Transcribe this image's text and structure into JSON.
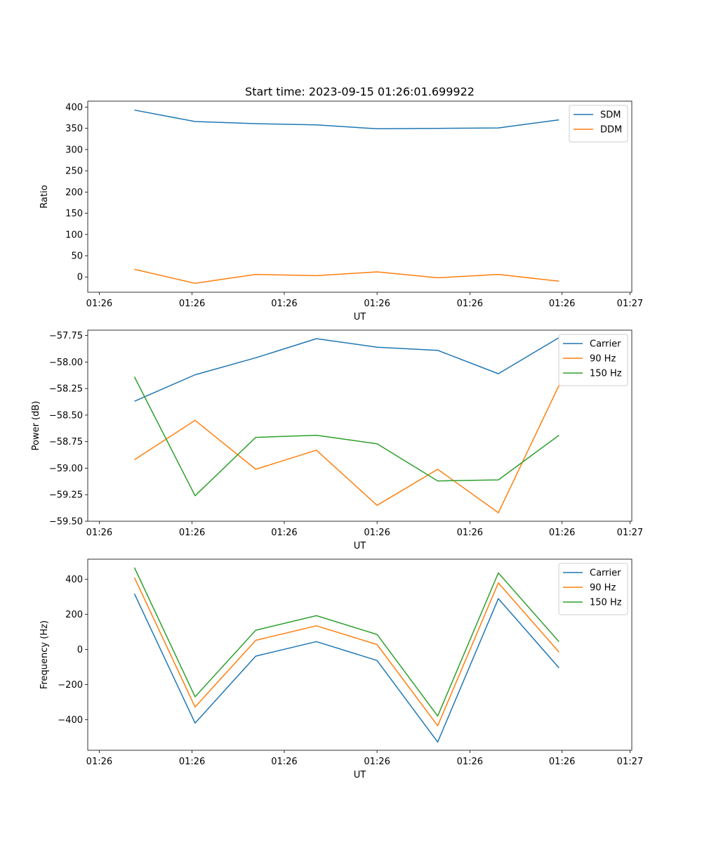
{
  "chart_data": [
    {
      "type": "line",
      "title": "Start time: 2023-09-15 01:26:01.699922",
      "xlabel": "UT",
      "ylabel": "Ratio",
      "x": [
        1,
        2,
        3,
        4,
        5,
        6,
        7,
        8
      ],
      "xlim": [
        0.23,
        9.2
      ],
      "xticks": [
        0.42,
        1.95,
        3.47,
        5.0,
        6.53,
        8.05,
        9.17
      ],
      "xticklabels": [
        "01:26",
        "01:26",
        "01:26",
        "01:26",
        "01:26",
        "01:26",
        "01:27"
      ],
      "ylim": [
        -36,
        414
      ],
      "yticks": [
        0,
        50,
        100,
        150,
        200,
        250,
        300,
        350,
        400
      ],
      "legend": "top-right",
      "series": [
        {
          "name": "SDM",
          "color": "#1f77b4",
          "values": [
            393,
            366,
            361,
            358,
            349,
            350,
            351,
            370
          ]
        },
        {
          "name": "DDM",
          "color": "#ff7f0e",
          "values": [
            18,
            -15,
            6,
            3,
            12,
            -2,
            6,
            -10
          ]
        }
      ]
    },
    {
      "type": "line",
      "title": "",
      "xlabel": "UT",
      "ylabel": "Power (dB)",
      "x": [
        1,
        2,
        3,
        4,
        5,
        6,
        7,
        8
      ],
      "xlim": [
        0.23,
        9.2
      ],
      "xticks": [
        0.42,
        1.95,
        3.47,
        5.0,
        6.53,
        8.05,
        9.17
      ],
      "xticklabels": [
        "01:26",
        "01:26",
        "01:26",
        "01:26",
        "01:26",
        "01:26",
        "01:27"
      ],
      "ylim": [
        -59.5,
        -57.7
      ],
      "yticks": [
        -59.5,
        -59.25,
        -59.0,
        -58.75,
        -58.5,
        -58.25,
        -58.0,
        -57.75
      ],
      "yticklabels": [
        "−59.50",
        "−59.25",
        "−59.00",
        "−58.75",
        "−58.50",
        "−58.25",
        "−58.00",
        "−57.75"
      ],
      "legend": "top-right",
      "series": [
        {
          "name": "Carrier",
          "color": "#1f77b4",
          "values": [
            -58.37,
            -58.12,
            -57.96,
            -57.78,
            -57.86,
            -57.89,
            -58.11,
            -57.77
          ]
        },
        {
          "name": "90 Hz",
          "color": "#ff7f0e",
          "values": [
            -58.92,
            -58.55,
            -59.01,
            -58.83,
            -59.35,
            -59.01,
            -59.42,
            -58.22
          ]
        },
        {
          "name": "150 Hz",
          "color": "#2ca02c",
          "values": [
            -58.14,
            -59.26,
            -58.71,
            -58.69,
            -58.77,
            -59.12,
            -59.11,
            -58.69
          ]
        }
      ]
    },
    {
      "type": "line",
      "title": "",
      "xlabel": "UT",
      "ylabel": "Frequency (Hz)",
      "x": [
        1,
        2,
        3,
        4,
        5,
        6,
        7,
        8
      ],
      "xlim": [
        0.23,
        9.2
      ],
      "xticks": [
        0.42,
        1.95,
        3.47,
        5.0,
        6.53,
        8.05,
        9.17
      ],
      "xticklabels": [
        "01:26",
        "01:26",
        "01:26",
        "01:26",
        "01:26",
        "01:26",
        "01:27"
      ],
      "ylim": [
        -575,
        515
      ],
      "yticks": [
        -400,
        -200,
        0,
        200,
        400
      ],
      "yticklabels": [
        "−400",
        "−200",
        "0",
        "200",
        "400"
      ],
      "legend": "top-right",
      "series": [
        {
          "name": "Carrier",
          "color": "#1f77b4",
          "values": [
            318,
            -420,
            -38,
            45,
            -63,
            -528,
            290,
            -105
          ]
        },
        {
          "name": "90 Hz",
          "color": "#ff7f0e",
          "values": [
            410,
            -328,
            52,
            135,
            28,
            -435,
            380,
            -15
          ]
        },
        {
          "name": "150 Hz",
          "color": "#2ca02c",
          "values": [
            467,
            -270,
            110,
            193,
            86,
            -380,
            437,
            44
          ]
        }
      ]
    }
  ]
}
